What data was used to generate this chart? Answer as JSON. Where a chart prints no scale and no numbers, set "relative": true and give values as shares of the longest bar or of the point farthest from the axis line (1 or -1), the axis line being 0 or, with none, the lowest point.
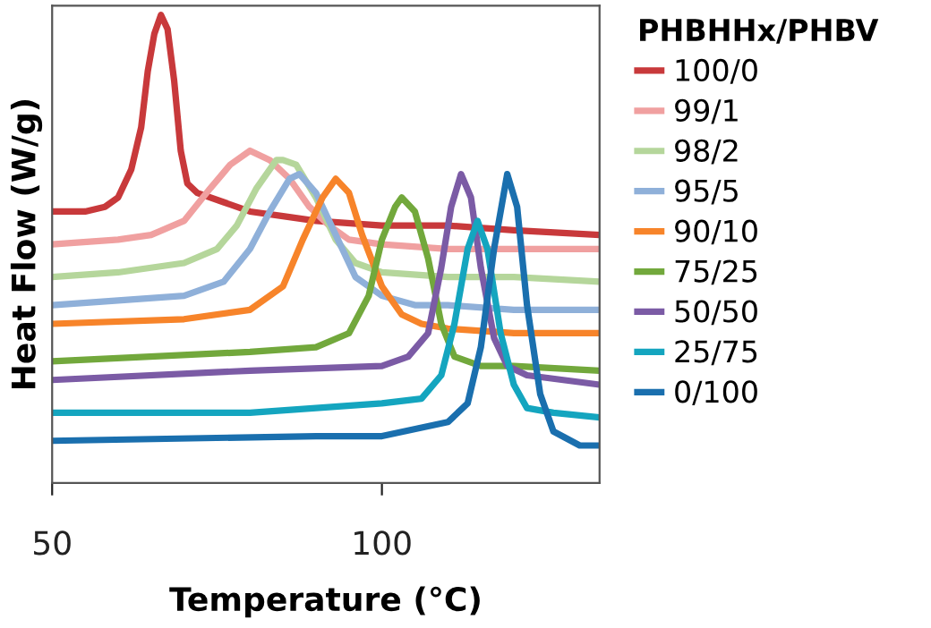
{
  "chart_data": {
    "type": "line",
    "relative": true,
    "xlabel": "Temperature (°C)",
    "ylabel": "Heat Flow (W/g)",
    "legend_title": "PHBHHx/PHBV",
    "legend": "right",
    "grid": false,
    "marker": "none",
    "line_style": "solid",
    "xlim": [
      50,
      133
    ],
    "xticks": [
      50,
      100
    ],
    "tick_labels": "x",
    "series": [
      {
        "name": "100/0",
        "color": "#c8393b",
        "x": [
          50,
          55,
          58,
          60,
          62,
          63.5,
          64.5,
          65.5,
          66.5,
          67.5,
          68.5,
          69.5,
          70.5,
          72,
          76,
          80,
          85,
          90,
          100,
          110,
          120,
          133
        ],
        "values": [
          0.58,
          0.58,
          0.59,
          0.61,
          0.67,
          0.76,
          0.88,
          0.96,
          1.0,
          0.97,
          0.86,
          0.71,
          0.64,
          0.62,
          0.6,
          0.58,
          0.57,
          0.56,
          0.55,
          0.55,
          0.54,
          0.53
        ]
      },
      {
        "name": "99/1",
        "color": "#f0a0a0",
        "x": [
          50,
          60,
          65,
          70,
          74,
          77,
          80,
          83,
          86,
          89,
          92,
          95,
          100,
          110,
          120,
          133
        ],
        "values": [
          0.51,
          0.52,
          0.53,
          0.56,
          0.63,
          0.68,
          0.71,
          0.69,
          0.65,
          0.59,
          0.55,
          0.52,
          0.51,
          0.5,
          0.5,
          0.5
        ]
      },
      {
        "name": "98/2",
        "color": "#b5d69b",
        "x": [
          50,
          60,
          70,
          75,
          78,
          81,
          84,
          85,
          87,
          90,
          93,
          96,
          100,
          110,
          120,
          133
        ],
        "values": [
          0.44,
          0.45,
          0.47,
          0.5,
          0.55,
          0.63,
          0.69,
          0.69,
          0.68,
          0.61,
          0.52,
          0.47,
          0.45,
          0.44,
          0.44,
          0.43
        ]
      },
      {
        "name": "95/5",
        "color": "#8fb0d9",
        "x": [
          50,
          60,
          70,
          76,
          80,
          83,
          86,
          87.5,
          90,
          93,
          96,
          100,
          105,
          110,
          120,
          133
        ],
        "values": [
          0.38,
          0.39,
          0.4,
          0.43,
          0.5,
          0.58,
          0.65,
          0.66,
          0.62,
          0.53,
          0.44,
          0.4,
          0.38,
          0.38,
          0.37,
          0.37
        ]
      },
      {
        "name": "90/10",
        "color": "#f7842a",
        "x": [
          50,
          70,
          80,
          85,
          88,
          91,
          93,
          95,
          97,
          100,
          103,
          106,
          110,
          120,
          133
        ],
        "values": [
          0.34,
          0.35,
          0.37,
          0.42,
          0.52,
          0.61,
          0.65,
          0.62,
          0.53,
          0.42,
          0.36,
          0.34,
          0.33,
          0.32,
          0.32
        ]
      },
      {
        "name": "75/25",
        "color": "#72a83c",
        "x": [
          50,
          80,
          90,
          95,
          98,
          100,
          102,
          103,
          105,
          107,
          109,
          111,
          115,
          120,
          133
        ],
        "values": [
          0.26,
          0.28,
          0.29,
          0.32,
          0.4,
          0.52,
          0.59,
          0.61,
          0.58,
          0.48,
          0.34,
          0.27,
          0.25,
          0.25,
          0.24
        ]
      },
      {
        "name": "50/50",
        "color": "#7b5ba5",
        "x": [
          50,
          80,
          100,
          104,
          107,
          109,
          110.5,
          112,
          113.5,
          115,
          117,
          119,
          122,
          133
        ],
        "values": [
          0.22,
          0.24,
          0.25,
          0.27,
          0.32,
          0.46,
          0.59,
          0.66,
          0.61,
          0.46,
          0.31,
          0.25,
          0.23,
          0.21
        ]
      },
      {
        "name": "25/75",
        "color": "#14a5bf",
        "x": [
          50,
          80,
          100,
          106,
          109,
          111,
          113,
          114.5,
          116,
          118,
          120,
          122,
          126,
          133
        ],
        "values": [
          0.15,
          0.15,
          0.17,
          0.18,
          0.23,
          0.34,
          0.5,
          0.56,
          0.5,
          0.32,
          0.21,
          0.16,
          0.15,
          0.14
        ]
      },
      {
        "name": "0/100",
        "color": "#1a6fae",
        "x": [
          50,
          90,
          100,
          110,
          113,
          115,
          117,
          119,
          120.5,
          122,
          124,
          126,
          130,
          133
        ],
        "values": [
          0.09,
          0.1,
          0.1,
          0.13,
          0.17,
          0.29,
          0.5,
          0.66,
          0.59,
          0.38,
          0.19,
          0.11,
          0.08,
          0.08
        ]
      }
    ]
  }
}
